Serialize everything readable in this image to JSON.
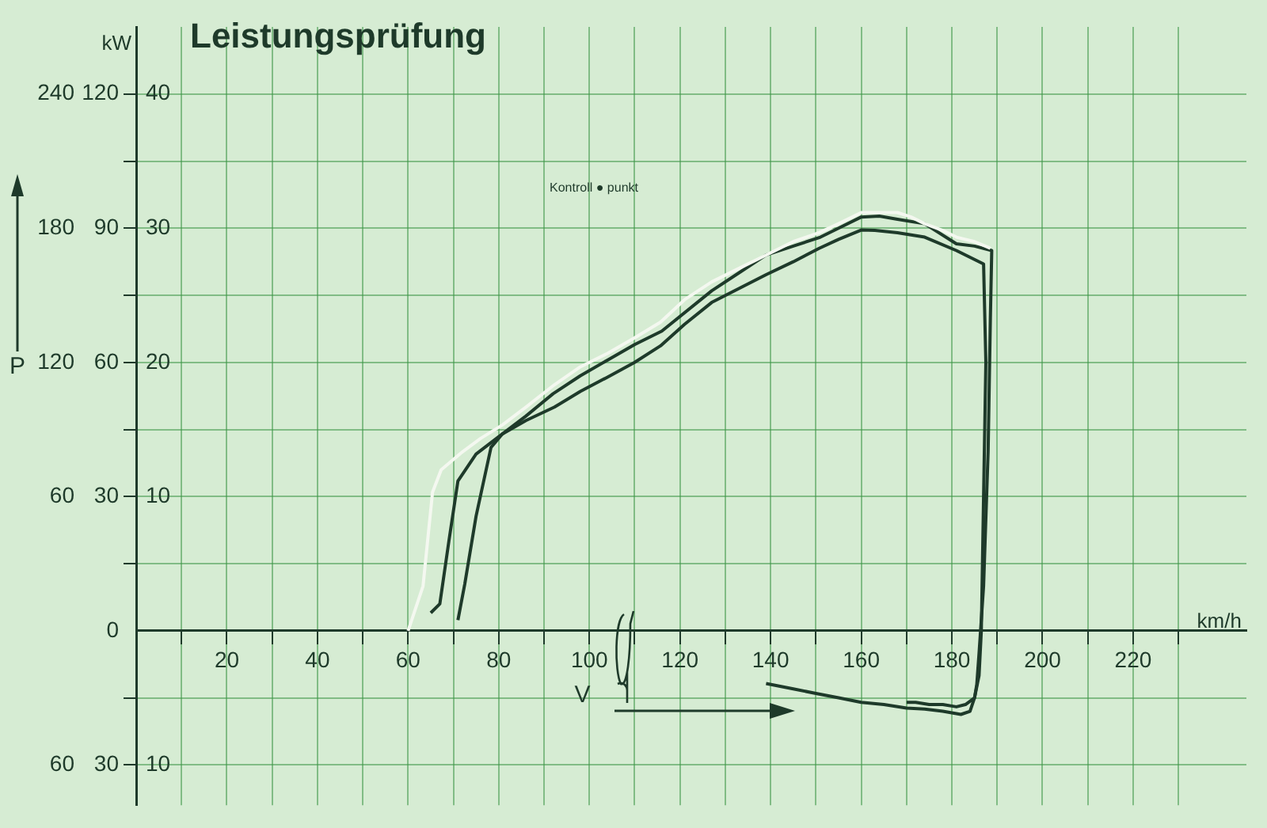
{
  "chart_data": {
    "type": "line",
    "title": "Leistungsprüfung",
    "xlabel": "V",
    "y2label": "P",
    "annotations": [
      "kW",
      "km/h",
      "Kontroll ● punkt"
    ],
    "xlim": [
      0,
      245
    ],
    "xticks": [
      {
        "value": 10,
        "label": null
      },
      20,
      {
        "value": 30,
        "label": null
      },
      40,
      {
        "value": 50,
        "label": null
      },
      60,
      {
        "value": 70,
        "label": null
      },
      80,
      {
        "value": 90,
        "label": null
      },
      100,
      {
        "value": 110,
        "label": null
      },
      120,
      {
        "value": 130,
        "label": null
      },
      140,
      {
        "value": 150,
        "label": null
      },
      160,
      {
        "value": 170,
        "label": null
      },
      180,
      {
        "value": 190,
        "label": null
      },
      200,
      {
        "value": 210,
        "label": null
      },
      220,
      {
        "value": 230,
        "label": null
      }
    ],
    "ylim": [
      -39,
      135
    ],
    "yticks": [
      {
        "value": -30,
        "label": "30"
      },
      0,
      30,
      60,
      90,
      120
    ],
    "y2lim": [
      -78,
      270
    ],
    "y2ticks": [
      {
        "value": -60,
        "label": "60"
      },
      60,
      120,
      180,
      240
    ],
    "y3lim": [
      -13,
      45
    ],
    "y3ticks": [
      {
        "value": -10,
        "label": "10"
      },
      {
        "value": -5,
        "label": null
      },
      {
        "value": 5,
        "label": null
      },
      10,
      {
        "value": 15,
        "label": null
      },
      20,
      {
        "value": 25,
        "label": null
      },
      30,
      {
        "value": 35,
        "label": null
      },
      40
    ],
    "grid": true,
    "marker": "none",
    "line_style": "solid",
    "series": [
      {
        "color": "#f4f8f0",
        "x": [
          60,
          61,
          63.3,
          64.3,
          65.4,
          67.3,
          72,
          76,
          80.8,
          86,
          92.3,
          98,
          104,
          110,
          115.7,
          121,
          127,
          133,
          139,
          145,
          150.7,
          155,
          160,
          164,
          168,
          171,
          174,
          178,
          181,
          185,
          188.5
        ],
        "values": [
          0,
          3,
          10,
          20,
          31,
          36,
          40,
          43,
          46,
          50,
          55,
          59,
          62,
          65.5,
          69,
          74,
          78,
          81,
          84,
          87,
          89,
          91,
          93.5,
          93.5,
          93.5,
          92.5,
          91,
          89.5,
          88,
          87,
          85.5
        ]
      },
      {
        "color": "#1e3a2a",
        "x": [
          65,
          67,
          69,
          71,
          75,
          79.5,
          86,
          92,
          98,
          104,
          110,
          116,
          127,
          133,
          139,
          145,
          151,
          155,
          160,
          164,
          168,
          174,
          181,
          185,
          188.8,
          188.5,
          188,
          187,
          186,
          185.5,
          185,
          183,
          181,
          178,
          175,
          172,
          170
        ],
        "values": [
          4,
          6,
          20,
          33.5,
          39.5,
          43,
          48,
          53,
          57,
          60.5,
          64,
          67,
          76,
          80,
          84,
          86,
          88,
          90,
          92.5,
          92.7,
          92,
          91,
          86.5,
          86,
          85,
          70,
          40,
          10,
          -5,
          -12,
          -15,
          -16.5,
          -17,
          -16.5,
          -16.5,
          -16,
          -16
        ]
      },
      {
        "color": "#1e3a2a",
        "x": [
          71,
          72.5,
          75,
          78.3,
          80.8,
          86,
          92.3,
          98,
          104,
          110,
          115.7,
          121,
          127,
          133,
          139,
          145,
          150.7,
          155,
          160,
          163,
          168,
          174,
          181,
          187,
          187.5,
          187,
          186.5,
          186,
          185,
          184,
          182,
          178,
          174,
          170,
          165,
          160,
          155,
          150,
          145,
          139
        ],
        "values": [
          2.4,
          10.4,
          25.6,
          41,
          44,
          47,
          50,
          53.5,
          56.7,
          60,
          63.7,
          68.5,
          73.4,
          76.5,
          79.6,
          82.5,
          85.5,
          87.5,
          89.6,
          89.5,
          89,
          88,
          85,
          82,
          60,
          30,
          0,
          -10,
          -15,
          -18,
          -18.7,
          -18,
          -17.5,
          -17.3,
          -16.5,
          -16,
          -15,
          -14,
          -13,
          -11.8
        ]
      }
    ]
  }
}
